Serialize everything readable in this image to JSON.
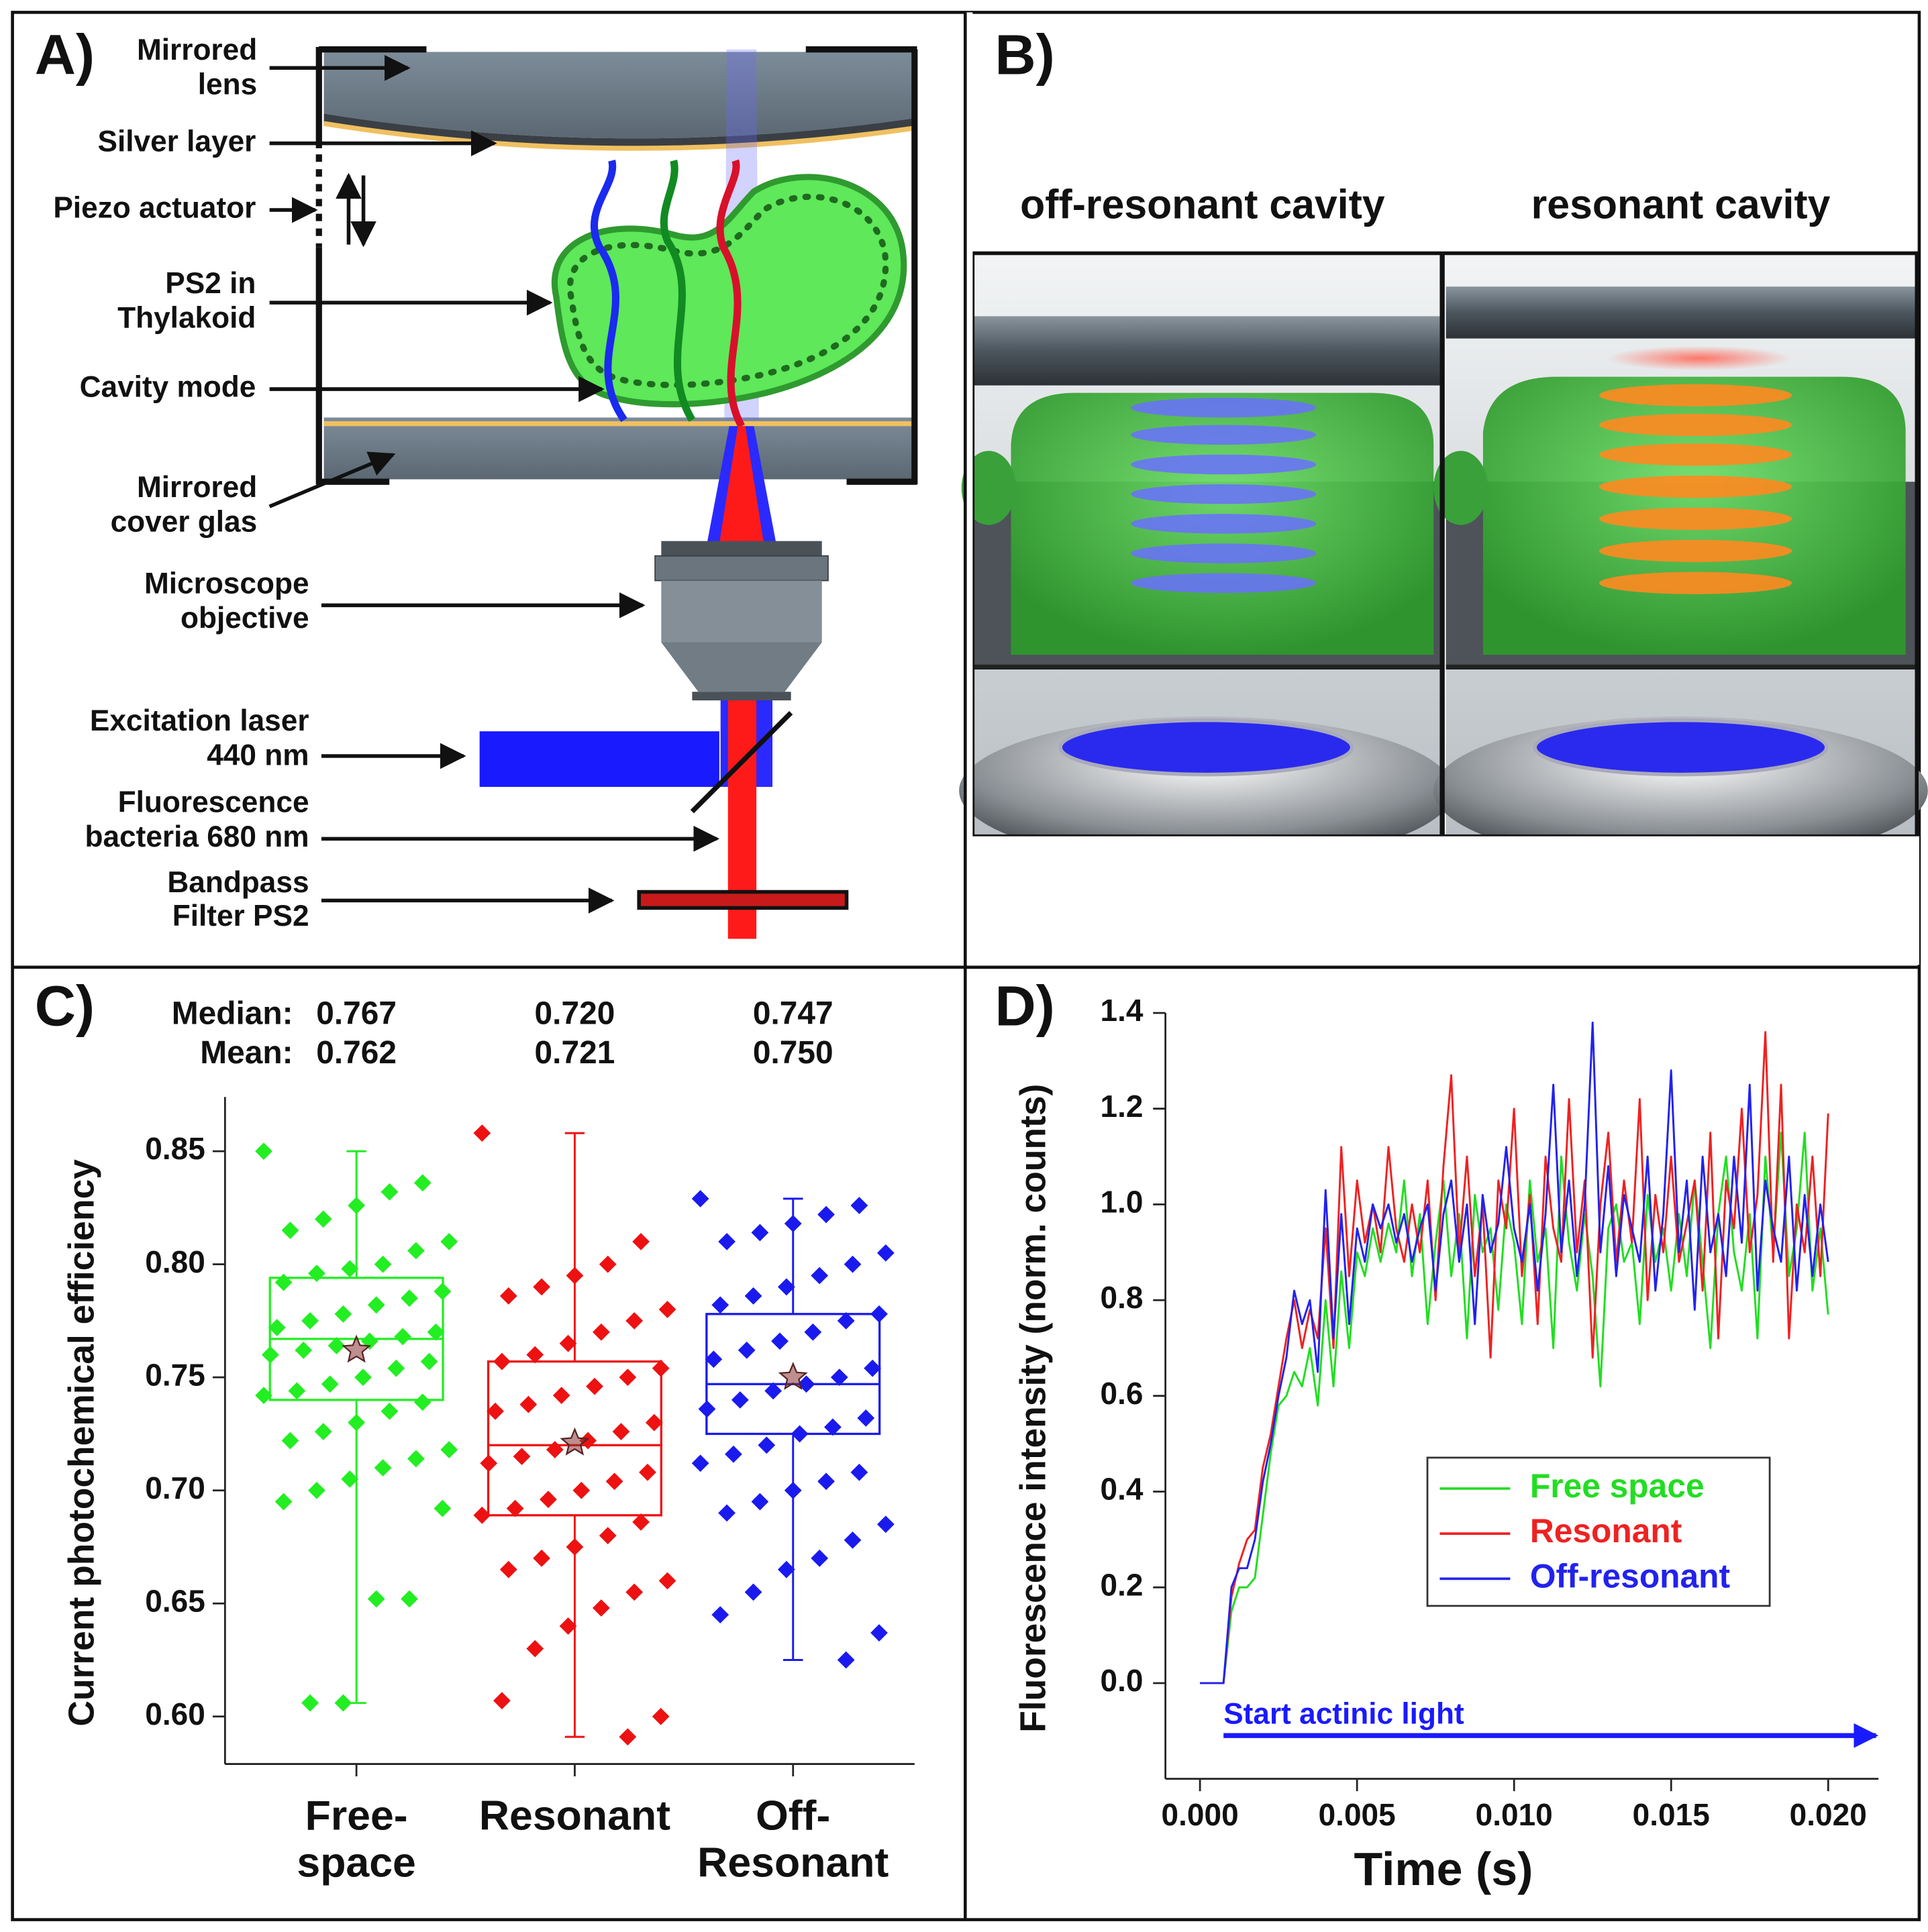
{
  "panel_a": {
    "label": "A)",
    "annotations": [
      {
        "lines": [
          "Mirrored",
          "lens"
        ]
      },
      {
        "lines": [
          "Silver layer"
        ]
      },
      {
        "lines": [
          "Piezo actuator"
        ]
      },
      {
        "lines": [
          "PS2 in",
          "Thylakoid"
        ]
      },
      {
        "lines": [
          "Cavity mode"
        ]
      },
      {
        "lines": [
          "Mirrored",
          "cover glas"
        ]
      },
      {
        "lines": [
          "Microscope",
          "objective"
        ]
      },
      {
        "lines": [
          "Excitation laser",
          "440 nm"
        ]
      },
      {
        "lines": [
          "Fluorescence",
          "bacteria 680 nm"
        ]
      },
      {
        "lines": [
          "Bandpass",
          "Filter PS2"
        ]
      }
    ]
  },
  "panel_b": {
    "label": "B)",
    "titles": [
      "off-resonant cavity",
      "resonant cavity"
    ]
  },
  "chart_data": [
    {
      "type": "box",
      "panel_label": "C)",
      "median_heading": "Median:",
      "mean_heading": "Mean:",
      "ylabel": "Current photochemical efficiency",
      "categories": [
        "Free-\nspace",
        "Resonant",
        "Off-\nResonant"
      ],
      "ylim": [
        0.579,
        0.874
      ],
      "yticks": [
        {
          "value": 0.6,
          "label": "0.60"
        },
        0.65,
        {
          "value": 0.7,
          "label": "0.70"
        },
        0.75,
        {
          "value": 0.8,
          "label": "0.80"
        },
        0.85
      ],
      "series": [
        {
          "color": "#22ee22",
          "q1": 0.74,
          "q3": 0.794,
          "whisker_low": 0.606,
          "whisker_high": 0.85,
          "median": 0.767,
          "median_label": "0.767",
          "mean": 0.762,
          "mean_label": "0.762",
          "points": [
            0.85,
            0.836,
            0.832,
            0.826,
            0.82,
            0.815,
            0.81,
            0.806,
            0.8,
            0.798,
            0.796,
            0.792,
            0.788,
            0.785,
            0.782,
            0.778,
            0.775,
            0.772,
            0.77,
            0.768,
            0.766,
            0.764,
            0.762,
            0.76,
            0.757,
            0.754,
            0.75,
            0.747,
            0.744,
            0.742,
            0.739,
            0.735,
            0.73,
            0.726,
            0.722,
            0.718,
            0.714,
            0.71,
            0.705,
            0.7,
            0.695,
            0.692,
            0.652,
            0.652,
            0.606,
            0.606
          ]
        },
        {
          "color": "#ee1111",
          "q1": 0.689,
          "q3": 0.757,
          "whisker_low": 0.591,
          "whisker_high": 0.858,
          "median": 0.72,
          "median_label": "0.720",
          "mean": 0.721,
          "mean_label": "0.721",
          "points": [
            0.858,
            0.81,
            0.8,
            0.795,
            0.79,
            0.786,
            0.78,
            0.775,
            0.77,
            0.765,
            0.76,
            0.757,
            0.754,
            0.75,
            0.746,
            0.742,
            0.738,
            0.735,
            0.73,
            0.726,
            0.722,
            0.718,
            0.715,
            0.712,
            0.708,
            0.704,
            0.7,
            0.696,
            0.692,
            0.689,
            0.686,
            0.68,
            0.675,
            0.67,
            0.665,
            0.66,
            0.655,
            0.648,
            0.64,
            0.63,
            0.607,
            0.6,
            0.591
          ]
        },
        {
          "color": "#1a1aee",
          "q1": 0.725,
          "q3": 0.778,
          "whisker_low": 0.625,
          "whisker_high": 0.829,
          "median": 0.747,
          "median_label": "0.747",
          "mean": 0.75,
          "mean_label": "0.750",
          "points": [
            0.829,
            0.826,
            0.822,
            0.818,
            0.814,
            0.81,
            0.805,
            0.8,
            0.795,
            0.79,
            0.786,
            0.782,
            0.778,
            0.775,
            0.77,
            0.766,
            0.762,
            0.758,
            0.754,
            0.75,
            0.747,
            0.744,
            0.74,
            0.736,
            0.732,
            0.728,
            0.725,
            0.72,
            0.716,
            0.712,
            0.708,
            0.704,
            0.7,
            0.695,
            0.69,
            0.685,
            0.678,
            0.67,
            0.665,
            0.655,
            0.645,
            0.637,
            0.625
          ]
        }
      ]
    },
    {
      "type": "line",
      "panel_label": "D)",
      "xlabel": "Time (s)",
      "ylabel": "Fluorescence intensity (norm. counts)",
      "xlim": [
        -0.0011,
        0.0216
      ],
      "ylim": [
        -0.2,
        1.4
      ],
      "xticks": [
        {
          "value": 0,
          "label": "0.000"
        },
        {
          "value": 0.005,
          "label": "0.005"
        },
        {
          "value": 0.01,
          "label": "0.010"
        },
        {
          "value": 0.015,
          "label": "0.015"
        },
        {
          "value": 0.02,
          "label": "0.020"
        }
      ],
      "yticks": [
        {
          "value": 0,
          "label": "0.0"
        },
        0.2,
        0.4,
        0.6,
        0.8,
        {
          "value": 1,
          "label": "1.0"
        },
        1.2,
        1.4
      ],
      "legend": "lower right",
      "annotation": {
        "text": "Start actinic light",
        "color": "#1a1aff"
      },
      "x": [
        0,
        0.00025,
        0.0005,
        0.00075,
        0.001,
        0.00125,
        0.0015,
        0.00175,
        0.002,
        0.00225,
        0.0025,
        0.00275,
        0.003,
        0.00325,
        0.0035,
        0.00375,
        0.004,
        0.00425,
        0.0045,
        0.00475,
        0.005,
        0.00525,
        0.0055,
        0.00575,
        0.006,
        0.00625,
        0.0065,
        0.00675,
        0.007,
        0.00725,
        0.0075,
        0.00775,
        0.008,
        0.00825,
        0.0085,
        0.00875,
        0.009,
        0.00925,
        0.0095,
        0.00975,
        0.01,
        0.01025,
        0.0105,
        0.01075,
        0.011,
        0.01125,
        0.0115,
        0.01175,
        0.012,
        0.01225,
        0.0125,
        0.01275,
        0.013,
        0.01325,
        0.0135,
        0.01375,
        0.014,
        0.01425,
        0.0145,
        0.01475,
        0.015,
        0.01525,
        0.0155,
        0.01575,
        0.016,
        0.01625,
        0.0165,
        0.01675,
        0.017,
        0.01725,
        0.0175,
        0.01775,
        0.018,
        0.01825,
        0.0185,
        0.01875,
        0.019,
        0.01925,
        0.0195,
        0.01975,
        0.02
      ],
      "series": [
        {
          "name": "Free space",
          "color": "#22dd22",
          "values": [
            0,
            0,
            0,
            0,
            0.15,
            0.2,
            0.2,
            0.22,
            0.35,
            0.48,
            0.58,
            0.6,
            0.65,
            0.62,
            0.7,
            0.58,
            0.8,
            0.62,
            0.86,
            0.7,
            0.9,
            0.85,
            0.95,
            0.88,
            0.96,
            0.9,
            1.05,
            0.85,
            0.98,
            0.75,
            0.92,
            1.05,
            0.85,
            0.98,
            0.72,
            1.02,
            0.9,
            0.95,
            0.78,
            1.0,
            0.92,
            0.75,
            1.05,
            0.88,
            0.95,
            0.7,
            1.1,
            0.92,
            0.82,
            0.98,
            0.85,
            0.62,
            0.95,
            1.0,
            0.88,
            0.92,
            0.75,
            1.02,
            0.88,
            0.95,
            0.82,
            0.98,
            0.85,
            1.05,
            0.88,
            0.7,
            0.98,
            1.1,
            0.9,
            0.82,
            0.98,
            0.72,
            1.1,
            0.9,
            1.15,
            0.85,
            0.95,
            1.15,
            0.82,
            0.95,
            0.77
          ]
        },
        {
          "name": "Resonant",
          "color": "#ee2222",
          "values": [
            0,
            0,
            0,
            0,
            0.18,
            0.25,
            0.3,
            0.32,
            0.45,
            0.52,
            0.62,
            0.72,
            0.8,
            0.7,
            0.78,
            0.72,
            0.95,
            0.7,
            1.12,
            0.85,
            1.05,
            0.92,
            1.0,
            0.9,
            1.12,
            0.95,
            0.88,
            1.0,
            0.9,
            1.05,
            0.8,
            1.08,
            1.27,
            0.9,
            1.1,
            0.85,
            1.0,
            0.68,
            1.05,
            0.95,
            1.2,
            0.85,
            1.02,
            0.75,
            1.1,
            0.95,
            0.88,
            1.22,
            0.9,
            1.05,
            0.68,
            1.0,
            1.15,
            0.88,
            1.05,
            0.92,
            1.22,
            0.8,
            1.02,
            0.9,
            1.1,
            0.88,
            0.96,
            1.05,
            0.82,
            1.15,
            0.72,
            1.05,
            0.95,
            1.2,
            0.9,
            1.02,
            1.36,
            0.88,
            1.25,
            0.72,
            1.0,
            0.9,
            1.1,
            0.85,
            1.19
          ]
        },
        {
          "name": "Off-resonant",
          "color": "#2222ee",
          "values": [
            0,
            0,
            0,
            0,
            0.2,
            0.24,
            0.24,
            0.3,
            0.42,
            0.5,
            0.6,
            0.68,
            0.82,
            0.75,
            0.8,
            0.65,
            1.03,
            0.72,
            0.98,
            0.75,
            0.95,
            0.88,
            1.0,
            0.95,
            1.0,
            0.92,
            0.98,
            0.88,
            0.95,
            1.0,
            0.82,
            0.98,
            1.05,
            0.88,
            1.0,
            0.75,
            1.02,
            0.9,
            0.96,
            1.12,
            0.95,
            0.88,
            1.0,
            0.82,
            0.98,
            1.25,
            0.9,
            1.05,
            0.85,
            1.0,
            1.38,
            0.9,
            1.08,
            0.85,
            1.02,
            0.95,
            0.88,
            1.1,
            0.82,
            0.98,
            1.28,
            0.9,
            1.05,
            0.78,
            1.1,
            0.9,
            0.98,
            0.85,
            1.1,
            0.92,
            1.25,
            0.82,
            1.05,
            0.95,
            0.88,
            1.1,
            0.82,
            1.02,
            0.85,
            1.0,
            0.88
          ]
        }
      ]
    }
  ]
}
